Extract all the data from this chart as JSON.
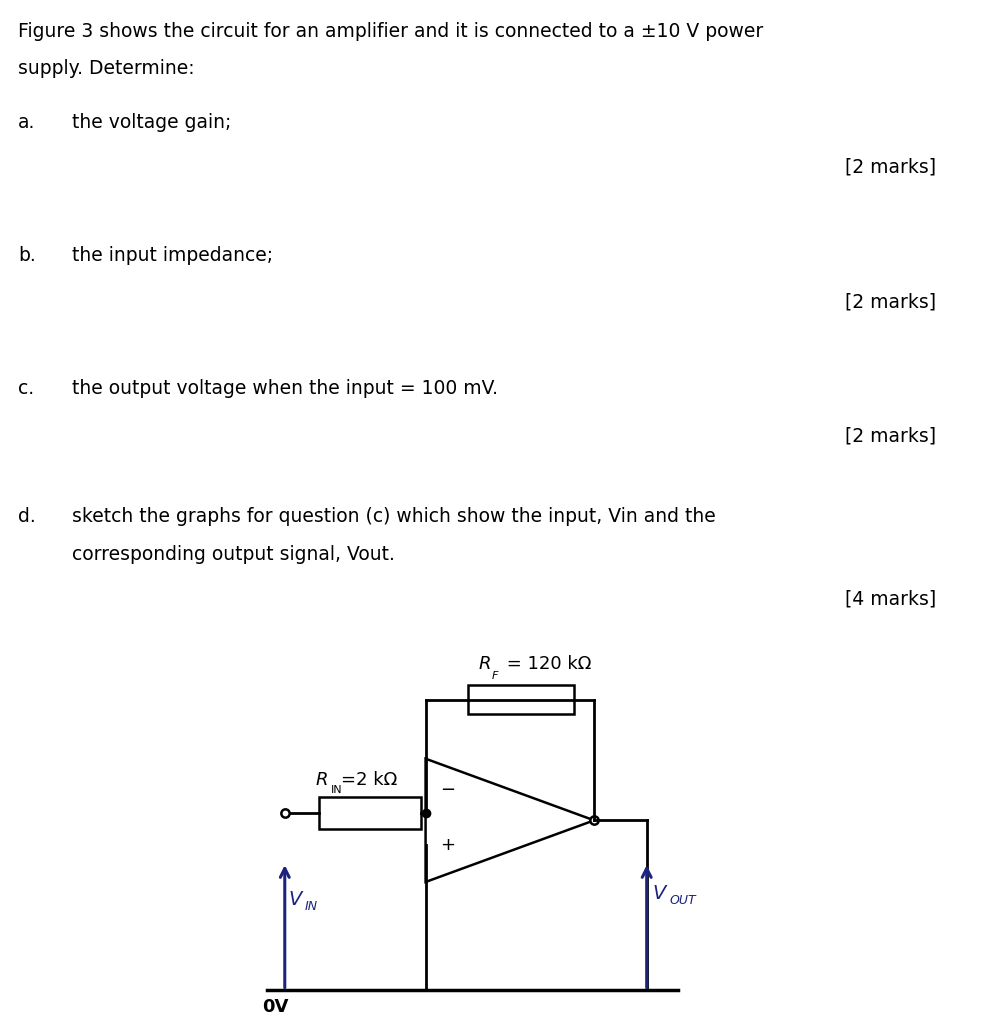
{
  "background_color": "#ffffff",
  "text_color": "#000000",
  "arrow_color": "#1a237e",
  "wire_color": "#000000",
  "figsize": [
    9.87,
    10.24
  ],
  "dpi": 100,
  "font_family": "Arial",
  "title_fs": 13.5,
  "body_fs": 13.5,
  "marks_fs": 13.5,
  "label_fs": 12.5,
  "title_line1": "Figure 3 shows the circuit for an amplifier and it is connected to a ±10 V power",
  "title_line2": "supply. Determine:",
  "q_a_label": "a.",
  "q_a_text": "the voltage gain;",
  "q_b_label": "b.",
  "q_b_text": "the input impedance;",
  "q_c_label": "c.",
  "q_c_text": "the output voltage when the input = 100 mV.",
  "q_d_label": "d.",
  "q_d_text1": "sketch the graphs for question (c) which show the input, Vin and the",
  "q_d_text2": "corresponding output signal, Vout.",
  "marks_2": "[2 marks]",
  "marks_4": "[4 marks]",
  "rf_text": "R",
  "rf_sub": "F",
  "rf_val": " = 120 kΩ",
  "rin_text": "R",
  "rin_sub": "IN",
  "rin_val": "=2 kΩ",
  "vin_main": "V",
  "vin_sub": "IN",
  "vout_main": "V",
  "vout_sub": "OUT",
  "ov_text": "0V"
}
